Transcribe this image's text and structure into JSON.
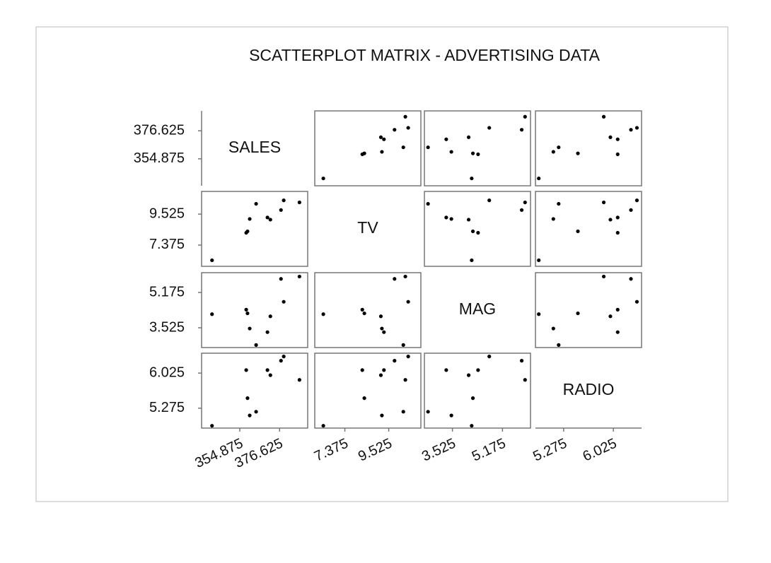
{
  "chart_data": {
    "type": "scatter",
    "title": "SCATTERPLOT MATRIX - ADVERTISING DATA",
    "point_color": "#000000",
    "variables": [
      {
        "name": "SALES",
        "lim": [
          334,
          392
        ],
        "ticks": [
          354.875,
          376.625
        ],
        "values": [
          339.7,
          358.4,
          359.1,
          360.3,
          363.8,
          370.0,
          371.6,
          377.4,
          378.9,
          387.5
        ]
      },
      {
        "name": "TV",
        "lim": [
          5.9,
          11.1
        ],
        "ticks": [
          7.375,
          9.525
        ],
        "values": [
          6.32,
          8.23,
          8.33,
          9.19,
          10.24,
          9.29,
          9.14,
          9.81,
          10.48,
          10.34
        ]
      },
      {
        "name": "MAG",
        "lim": [
          2.6,
          6.1
        ],
        "ticks": [
          3.525,
          5.175
        ],
        "values": [
          4.16,
          4.37,
          4.2,
          3.49,
          2.72,
          3.32,
          4.06,
          5.81,
          4.74,
          5.92
        ]
      },
      {
        "name": "RADIO",
        "lim": [
          4.85,
          6.45
        ],
        "ticks": [
          5.275,
          6.025
        ],
        "values": [
          4.9,
          6.09,
          5.49,
          5.12,
          5.2,
          6.09,
          5.98,
          6.29,
          6.38,
          5.88
        ]
      }
    ]
  }
}
